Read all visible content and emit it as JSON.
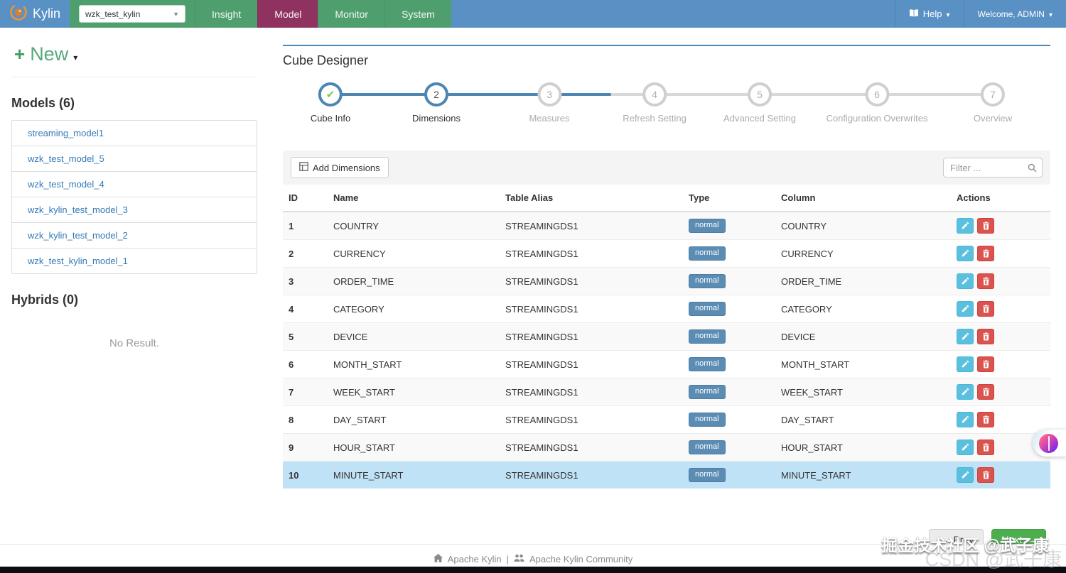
{
  "navbar": {
    "brand": "Kylin",
    "project_selected": "wzk_test_kylin",
    "items": [
      "Insight",
      "Model",
      "Monitor",
      "System"
    ],
    "active_item": "Model",
    "help_label": "Help",
    "welcome_label": "Welcome, ADMIN"
  },
  "sidebar": {
    "new_label": "New",
    "models_heading": "Models (6)",
    "models": [
      "streaming_model1",
      "wzk_test_model_5",
      "wzk_test_model_4",
      "wzk_kylin_test_model_3",
      "wzk_kylin_test_model_2",
      "wzk_test_kylin_model_1"
    ],
    "hybrids_heading": "Hybrids (0)",
    "no_result": "No Result."
  },
  "cube_designer": {
    "title": "Cube Designer",
    "steps": [
      {
        "num": "1",
        "label": "Cube Info",
        "state": "done"
      },
      {
        "num": "2",
        "label": "Dimensions",
        "state": "active"
      },
      {
        "num": "3",
        "label": "Measures",
        "state": "todo"
      },
      {
        "num": "4",
        "label": "Refresh Setting",
        "state": "todo"
      },
      {
        "num": "5",
        "label": "Advanced Setting",
        "state": "todo"
      },
      {
        "num": "6",
        "label": "Configuration Overwrites",
        "state": "todo"
      },
      {
        "num": "7",
        "label": "Overview",
        "state": "todo"
      }
    ],
    "add_button_label": "Add Dimensions",
    "filter_placeholder": "Filter ...",
    "table": {
      "headers": [
        "ID",
        "Name",
        "Table Alias",
        "Type",
        "Column",
        "Actions"
      ],
      "rows": [
        {
          "id": "1",
          "name": "COUNTRY",
          "table_alias": "STREAMINGDS1",
          "type": "normal",
          "column": "COUNTRY",
          "selected": false
        },
        {
          "id": "2",
          "name": "CURRENCY",
          "table_alias": "STREAMINGDS1",
          "type": "normal",
          "column": "CURRENCY",
          "selected": false
        },
        {
          "id": "3",
          "name": "ORDER_TIME",
          "table_alias": "STREAMINGDS1",
          "type": "normal",
          "column": "ORDER_TIME",
          "selected": false
        },
        {
          "id": "4",
          "name": "CATEGORY",
          "table_alias": "STREAMINGDS1",
          "type": "normal",
          "column": "CATEGORY",
          "selected": false
        },
        {
          "id": "5",
          "name": "DEVICE",
          "table_alias": "STREAMINGDS1",
          "type": "normal",
          "column": "DEVICE",
          "selected": false
        },
        {
          "id": "6",
          "name": "MONTH_START",
          "table_alias": "STREAMINGDS1",
          "type": "normal",
          "column": "MONTH_START",
          "selected": false
        },
        {
          "id": "7",
          "name": "WEEK_START",
          "table_alias": "STREAMINGDS1",
          "type": "normal",
          "column": "WEEK_START",
          "selected": false
        },
        {
          "id": "8",
          "name": "DAY_START",
          "table_alias": "STREAMINGDS1",
          "type": "normal",
          "column": "DAY_START",
          "selected": false
        },
        {
          "id": "9",
          "name": "HOUR_START",
          "table_alias": "STREAMINGDS1",
          "type": "normal",
          "column": "HOUR_START",
          "selected": false
        },
        {
          "id": "10",
          "name": "MINUTE_START",
          "table_alias": "STREAMINGDS1",
          "type": "normal",
          "column": "MINUTE_START",
          "selected": true
        }
      ]
    },
    "prev_label": "Prev",
    "next_label": "Next"
  },
  "footer": {
    "link1": "Apache Kylin",
    "separator": "|",
    "link2": "Apache Kylin Community"
  },
  "watermarks": {
    "primary": "掘金技术社区 @武子康",
    "secondary": "CSDN @武子康"
  },
  "colors": {
    "navbar_blue": "#5a91c4",
    "nav_green": "#4e9e6e",
    "nav_active_maroon": "#90325f",
    "link_blue": "#337ab7",
    "step_blue": "#4b86b4",
    "check_green": "#8bc34a",
    "badge_blue": "#5a8cb4",
    "edit_blue": "#5bc0de",
    "delete_red": "#d9534f",
    "next_green": "#4cae4c",
    "selected_row_blue": "#c0e2f6"
  }
}
